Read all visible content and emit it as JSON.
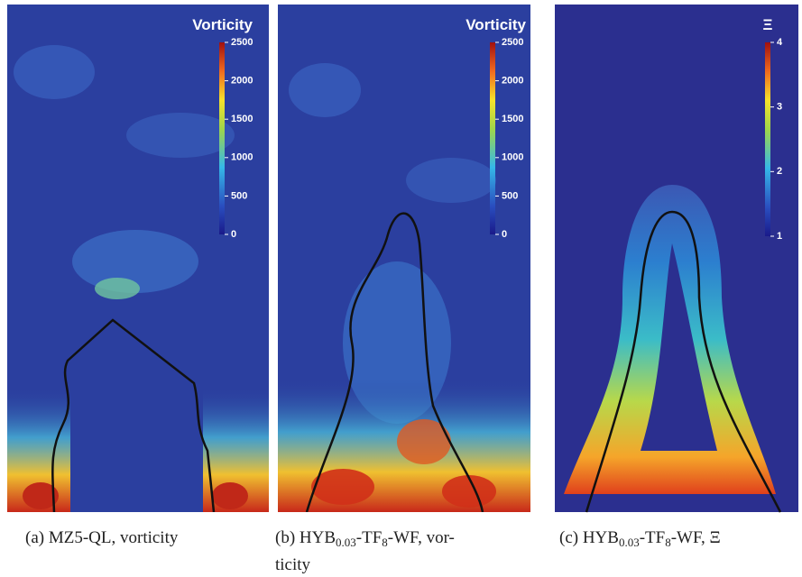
{
  "panels": [
    {
      "colorbar": {
        "title": "Vorticity",
        "ticks": [
          0,
          500,
          1000,
          1500,
          2000,
          2500
        ]
      },
      "caption": [
        [
          "(a) MZ5-QL, vorticity"
        ]
      ]
    },
    {
      "colorbar": {
        "title": "Vorticity",
        "ticks": [
          0,
          500,
          1000,
          1500,
          2000,
          2500
        ]
      },
      "caption": [
        [
          "(b) HYB",
          "0.03",
          "-TF",
          "8",
          "-WF, vor-"
        ],
        [
          "ticity"
        ]
      ]
    },
    {
      "colorbar": {
        "title": "Ξ",
        "ticks": [
          1,
          2,
          3,
          4
        ]
      },
      "caption": [
        [
          "(c) HYB",
          "0.03",
          "-TF",
          "8",
          "-WF, Ξ"
        ]
      ]
    }
  ]
}
